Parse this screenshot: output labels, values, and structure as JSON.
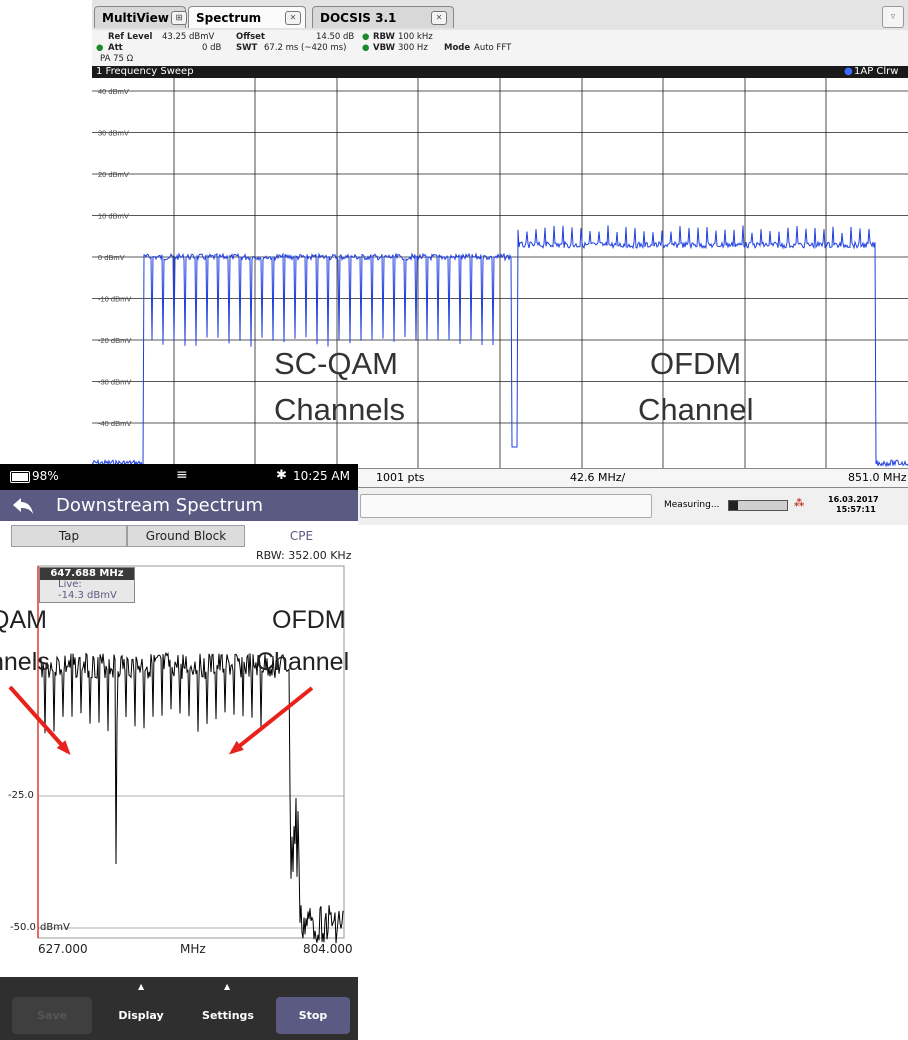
{
  "analyzer": {
    "tabs": [
      "MultiView",
      "Spectrum",
      "DOCSIS 3.1"
    ],
    "ref_level_label": "Ref Level",
    "ref_level_value": "43.25 dBmV",
    "offset_label": "Offset",
    "offset_value": "14.50 dB",
    "rbw_label": "RBW",
    "rbw_value": "100 kHz",
    "att_label": "Att",
    "att_value": "0 dB",
    "swt_label": "SWT",
    "swt_value": "67.2 ms (~420 ms)",
    "vbw_label": "VBW",
    "vbw_value": "300 Hz",
    "mode_label": "Mode",
    "mode_value": "Auto FFT",
    "pa_label": "PA 75 Ω",
    "sweep_title": "1 Frequency Sweep",
    "trace_label": "1AP Clrw",
    "y_ticks": [
      "40 dBmV",
      "30 dBmV",
      "20 dBmV",
      "10 dBmV",
      "0 dBmV",
      "-10 dBmV",
      "-20 dBmV",
      "-30 dBmV",
      "-40 dBmV"
    ],
    "points_label": "1001 pts",
    "span_label": "42.6 MHz/",
    "stop_freq": "851.0 MHz",
    "measuring_label": "Measuring...",
    "date": "16.03.2017",
    "time": "15:57:11",
    "annotation_left_1": "SC-QAM",
    "annotation_left_2": "Channels",
    "annotation_right_1": "OFDM",
    "annotation_right_2": "Channel",
    "trace_color": "#1f3fe0"
  },
  "phone": {
    "battery": "98%",
    "clock": "10:25 AM",
    "title": "Downstream Spectrum",
    "tabs": [
      "Tap",
      "Ground Block",
      "CPE"
    ],
    "rbw": "RBW: 352.00 KHz",
    "marker_freq": "647.688 MHz",
    "marker_live_label": "Live:",
    "marker_live_value": "-14.3 dBmV",
    "y_tick_1": "-25.0",
    "y_tick_2": "-50.0",
    "y_unit": "dBmV",
    "x_start": "627.000",
    "x_unit": "MHz",
    "x_end": "804.000",
    "annotation_left_1": "QAM",
    "annotation_left_2": "nnels",
    "annotation_right_1": "OFDM",
    "annotation_right_2": "Channel",
    "buttons": [
      "Save",
      "Display",
      "Settings",
      "Stop"
    ],
    "accent_color": "#5a5a82",
    "arrow_color": "#e8211b"
  }
}
